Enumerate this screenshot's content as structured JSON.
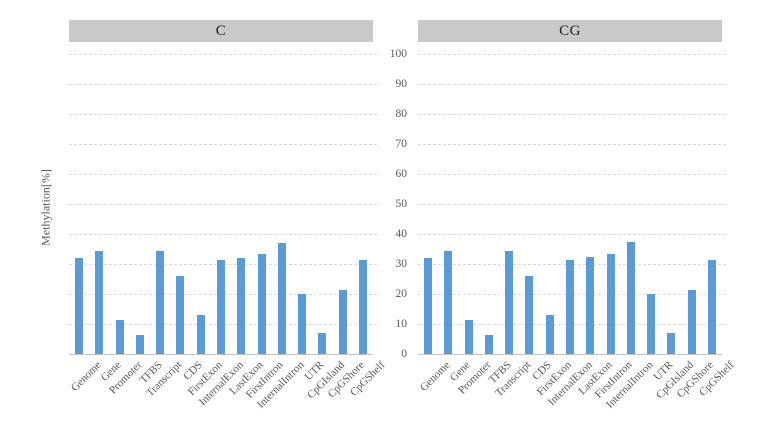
{
  "y_axis": {
    "title": "Methylation[%]",
    "tick_labels": [
      "100",
      "90",
      "80",
      "70",
      "60",
      "50",
      "40",
      "30",
      "20",
      "10",
      "0"
    ]
  },
  "colors": {
    "bar": "#5b9bd5",
    "panel_header_bg": "#c9c9c9",
    "gridline": "#d9d9d9",
    "axis_line": "#c3c3c3",
    "axis_text": "#595959"
  },
  "chart_data": [
    {
      "type": "bar",
      "title": "C",
      "categories": [
        "Genome",
        "Gene",
        "Promoter",
        "TFBS",
        "Transcript",
        "CDS",
        "FirstExon",
        "InternalExon",
        "LastExon",
        "FirstIntron",
        "InternalIntron",
        "UTR",
        "CpGIsland",
        "CpGShore",
        "CpGShelf"
      ],
      "values": [
        32.1,
        34.2,
        11.4,
        6.2,
        34.2,
        26.0,
        13.1,
        31.4,
        32.1,
        33.3,
        37.1,
        20.1,
        7.1,
        21.2,
        31.4
      ],
      "xlabel": "",
      "ylabel": "Methylation[%]",
      "ylim": [
        0,
        100
      ],
      "ytick_step": 10,
      "grid": "horizontal-dashed",
      "legend": "none",
      "bar_color": "#5b9bd5"
    },
    {
      "type": "bar",
      "title": "CG",
      "categories": [
        "Genome",
        "Gene",
        "Promoter",
        "TFBS",
        "Transcript",
        "CDS",
        "FirstExon",
        "InternalExon",
        "LastExon",
        "FirstIntron",
        "InternalIntron",
        "UTR",
        "CpGIsland",
        "CpGShore",
        "CpGShelf"
      ],
      "values": [
        32.1,
        34.3,
        11.4,
        6.2,
        34.3,
        26.1,
        13.1,
        31.4,
        32.2,
        33.2,
        37.2,
        20.1,
        7.1,
        21.3,
        31.2
      ],
      "xlabel": "",
      "ylabel": "Methylation[%]",
      "ylim": [
        0,
        100
      ],
      "ytick_step": 10,
      "grid": "horizontal-dashed",
      "legend": "none",
      "bar_color": "#5b9bd5"
    }
  ]
}
